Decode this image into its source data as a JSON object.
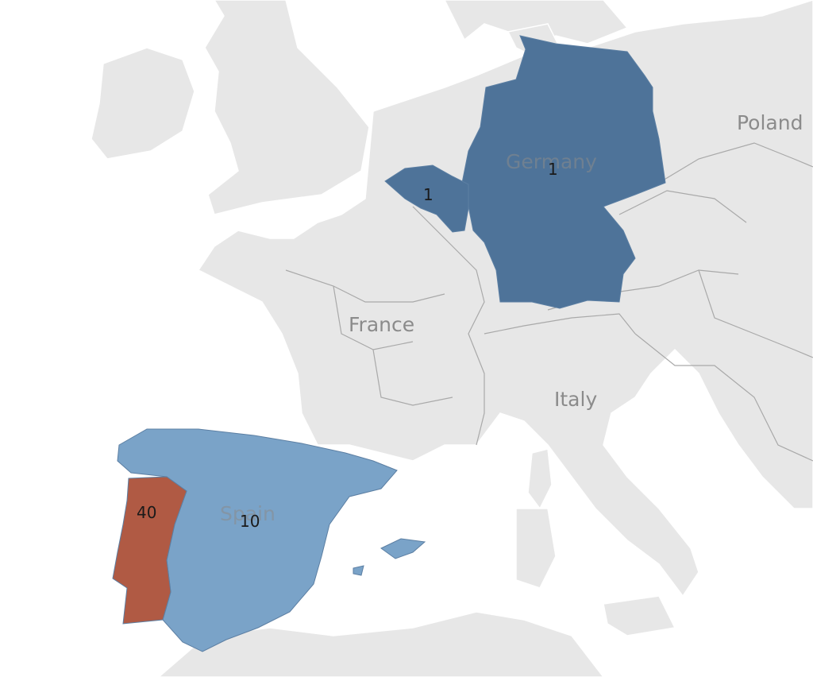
{
  "map": {
    "country_labels": {
      "poland": "Poland",
      "germany": "Germany",
      "france": "France",
      "italy": "Italy",
      "spain": "Spain"
    },
    "values": {
      "germany": "1",
      "belgium": "1",
      "spain": "10",
      "portugal": "40"
    },
    "colors": {
      "sea": "#ffffff",
      "land": "#e7e7e7",
      "germany": "#4e7399",
      "belgium": "#4e7399",
      "spain": "#7aa3c8",
      "portugal": "#b05a44"
    }
  }
}
